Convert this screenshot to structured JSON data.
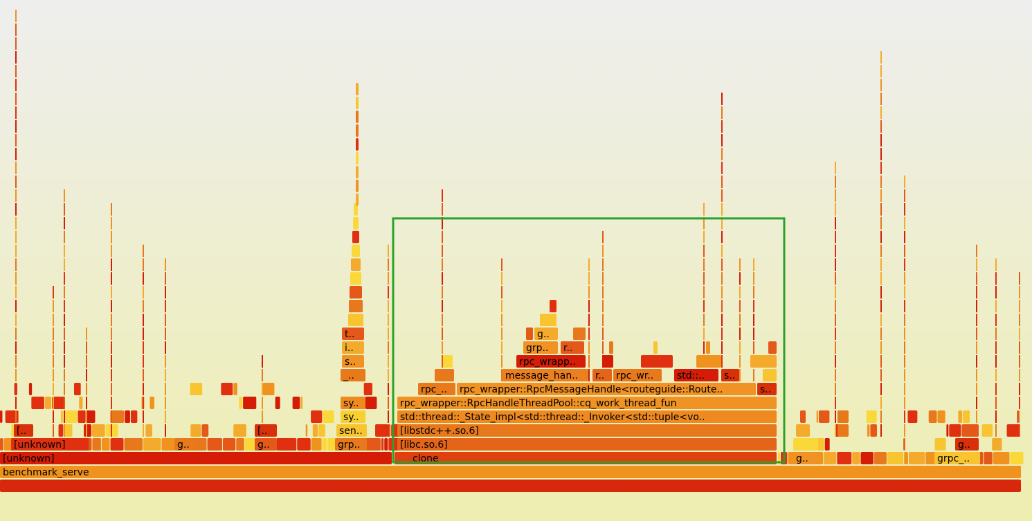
{
  "frames": [
    {
      "label": "benchmark_serve"
    },
    {
      "label": "[unknown]"
    },
    {
      "label": "[unknown]"
    },
    {
      "label": "[.."
    },
    {
      "label": "g.."
    },
    {
      "label": "[.."
    },
    {
      "label": "g.."
    },
    {
      "label": "t.."
    },
    {
      "label": "i.."
    },
    {
      "label": "s.."
    },
    {
      "label": "_.."
    },
    {
      "label": "sy.."
    },
    {
      "label": "sy.."
    },
    {
      "label": "sen.."
    },
    {
      "label": "grp.."
    },
    {
      "label": "clone"
    },
    {
      "label": "[libc.so.6]"
    },
    {
      "label": "[libstdc++.so.6]"
    },
    {
      "label": "std::thread::_State_impl<std::thread::_Invoker<std::tuple<vo.."
    },
    {
      "label": "rpc_wrapper::RpcHandleThreadPool::cq_work_thread_fun"
    },
    {
      "label": "rpc_.."
    },
    {
      "label": "rpc_wrapper::RpcMessageHandle<routeguide::Route.."
    },
    {
      "label": "s.."
    },
    {
      "label": "message_han.."
    },
    {
      "label": "r.."
    },
    {
      "label": "rpc_wr.."
    },
    {
      "label": "std::.."
    },
    {
      "label": "s.."
    },
    {
      "label": "rpc_wrapp.."
    },
    {
      "label": "grp.."
    },
    {
      "label": "r.."
    },
    {
      "label": "g.."
    },
    {
      "label": "g.."
    },
    {
      "label": "grpc_.."
    },
    {
      "label": "g.."
    }
  ]
}
